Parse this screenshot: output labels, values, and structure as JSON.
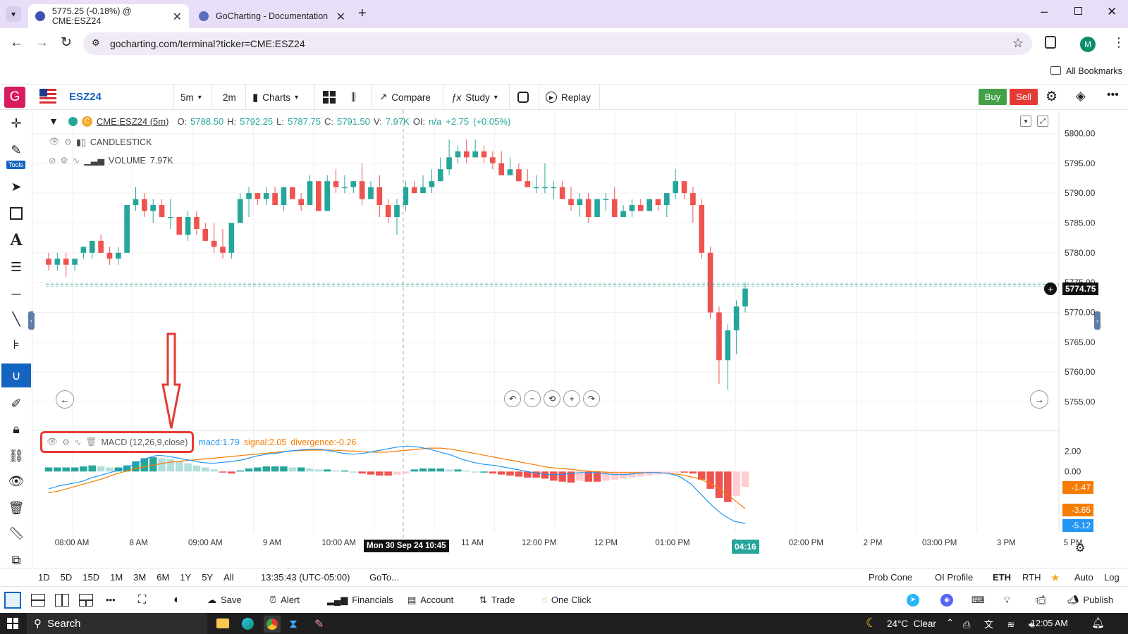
{
  "browser": {
    "tabs": [
      {
        "title": "5775.25 (-0.18%) @ CME:ESZ24",
        "active": true
      },
      {
        "title": "GoCharting - Documentation",
        "active": false
      }
    ],
    "url": "gocharting.com/terminal?ticker=CME:ESZ24",
    "profile_initial": "M",
    "bookmarks_label": "All Bookmarks"
  },
  "app": {
    "logo": "G",
    "symbol": "ESZ24",
    "interval_selected": "5m",
    "interval_alt": "2m",
    "charts_label": "Charts",
    "compare_label": "Compare",
    "study_label": "Study",
    "replay_label": "Replay",
    "buy_label": "Buy",
    "sell_label": "Sell",
    "tools_badge": "Tools"
  },
  "legend": {
    "ticker": "CME:ESZ24 (5m)",
    "ohlc": [
      {
        "k": "O:",
        "v": "5788.50"
      },
      {
        "k": "H:",
        "v": "5792.25"
      },
      {
        "k": "L:",
        "v": "5787.75"
      },
      {
        "k": "C:",
        "v": "5791.50"
      },
      {
        "k": "V:",
        "v": "7.97K"
      },
      {
        "k": "OI:",
        "v": "n/a"
      }
    ],
    "change": "+2.75",
    "change_pct": "(+0.05%)",
    "candlestick_label": "CANDLESTICK",
    "volume_label": "VOLUME",
    "volume_value": "7.97K"
  },
  "macd_legend": {
    "label": "MACD (12,26,9,close)",
    "macd": "macd:1.79",
    "signal": "signal:2.05",
    "divergence": "divergence:-0.26"
  },
  "price_axis": [
    "5800.00",
    "5795.00",
    "5790.00",
    "5785.00",
    "5780.00",
    "5775.00",
    "5770.00",
    "5765.00",
    "5760.00",
    "5755.00"
  ],
  "current_price": "5774.75",
  "macd_axis": [
    "2.00",
    "0.00"
  ],
  "macd_tags": [
    {
      "v": "-1.47",
      "color": "#f57c00"
    },
    {
      "v": "-3.65",
      "color": "#f57c00"
    },
    {
      "v": "-5.12",
      "color": "#2196f3"
    }
  ],
  "time_axis": [
    "08:00 AM",
    "8 AM",
    "09:00 AM",
    "9 AM",
    "10:00 AM",
    "10:45",
    "11 AM",
    "12:00 PM",
    "12 PM",
    "01:00 PM",
    "Sep",
    "02:00 PM",
    "2 PM",
    "03:00 PM",
    "3 PM",
    "5 PM"
  ],
  "crosshair_label": "Mon 30 Sep 24 10:45",
  "current_time_label": "04:16",
  "range_buttons": [
    "1D",
    "5D",
    "15D",
    "1M",
    "3M",
    "6M",
    "1Y",
    "5Y",
    "All"
  ],
  "clock": "13:35:43 (UTC-05:00)",
  "goto_label": "GoTo...",
  "right_options": [
    "Prob Cone",
    "OI Profile",
    "ETH",
    "RTH",
    "Auto",
    "Log"
  ],
  "bottom_toolbar": {
    "save": "Save",
    "alert": "Alert",
    "financials": "Financials",
    "account": "Account",
    "trade": "Trade",
    "one_click": "One Click",
    "publish": "Publish"
  },
  "taskbar": {
    "search": "Search",
    "weather": "24°C  Clear",
    "time": "12:05 AM"
  },
  "chart_data": {
    "type": "candlestick",
    "ylim": [
      5752,
      5803
    ],
    "candles": [
      [
        5779,
        5780,
        5777,
        5778
      ],
      [
        5778,
        5780,
        5777,
        5779
      ],
      [
        5779,
        5780,
        5776,
        5778
      ],
      [
        5778,
        5779,
        5777,
        5779
      ],
      [
        5780,
        5781,
        5779,
        5781
      ],
      [
        5780,
        5782,
        5779,
        5782
      ],
      [
        5782,
        5783,
        5780,
        5780
      ],
      [
        5780,
        5781,
        5778,
        5779
      ],
      [
        5779,
        5781,
        5778,
        5780
      ],
      [
        5780,
        5788,
        5780,
        5788
      ],
      [
        5788,
        5791,
        5787,
        5789
      ],
      [
        5789,
        5790,
        5786,
        5787
      ],
      [
        5787,
        5789,
        5785,
        5788
      ],
      [
        5788,
        5789,
        5786,
        5786
      ],
      [
        5786,
        5789,
        5784,
        5786
      ],
      [
        5786,
        5786,
        5783,
        5783
      ],
      [
        5783,
        5787,
        5782,
        5786
      ],
      [
        5786,
        5787,
        5783,
        5784
      ],
      [
        5784,
        5785,
        5782,
        5782
      ],
      [
        5782,
        5785,
        5780,
        5781
      ],
      [
        5781,
        5784,
        5779,
        5780
      ],
      [
        5780,
        5785,
        5779,
        5785
      ],
      [
        5785,
        5790,
        5785,
        5789
      ],
      [
        5789,
        5791,
        5786,
        5790
      ],
      [
        5790,
        5790,
        5788,
        5789
      ],
      [
        5789,
        5791,
        5788,
        5790
      ],
      [
        5790,
        5791,
        5788,
        5788
      ],
      [
        5788,
        5791,
        5787,
        5791
      ],
      [
        5791,
        5791,
        5789,
        5789
      ],
      [
        5789,
        5790,
        5787,
        5788
      ],
      [
        5788,
        5793,
        5788,
        5792
      ],
      [
        5792,
        5792,
        5787,
        5787
      ],
      [
        5787,
        5793,
        5787,
        5792
      ],
      [
        5792,
        5794,
        5790,
        5791
      ],
      [
        5791,
        5793,
        5790,
        5791
      ],
      [
        5791,
        5792,
        5790,
        5792
      ],
      [
        5792,
        5795,
        5788,
        5789
      ],
      [
        5789,
        5792,
        5789,
        5791
      ],
      [
        5791,
        5793,
        5786,
        5788
      ],
      [
        5788,
        5789,
        5785,
        5786
      ],
      [
        5786,
        5789,
        5783,
        5788
      ],
      [
        5788,
        5792,
        5787,
        5791
      ],
      [
        5791,
        5792,
        5790,
        5790
      ],
      [
        5790,
        5793,
        5790,
        5791
      ],
      [
        5791,
        5794,
        5790,
        5792
      ],
      [
        5792,
        5796,
        5792,
        5794
      ],
      [
        5794,
        5799,
        5793,
        5796
      ],
      [
        5796,
        5798,
        5795,
        5797
      ],
      [
        5797,
        5799,
        5795,
        5796
      ],
      [
        5796,
        5799,
        5796,
        5797
      ],
      [
        5797,
        5798,
        5795,
        5796
      ],
      [
        5796,
        5797,
        5794,
        5795
      ],
      [
        5795,
        5797,
        5793,
        5793
      ],
      [
        5793,
        5796,
        5793,
        5794
      ],
      [
        5794,
        5795,
        5792,
        5792
      ],
      [
        5792,
        5794,
        5791,
        5791
      ],
      [
        5791,
        5793,
        5790,
        5791
      ],
      [
        5791,
        5795,
        5790,
        5791
      ],
      [
        5791,
        5792,
        5789,
        5791
      ],
      [
        5791,
        5792,
        5789,
        5789
      ],
      [
        5789,
        5791,
        5787,
        5788
      ],
      [
        5788,
        5790,
        5786,
        5789
      ],
      [
        5789,
        5790,
        5785,
        5786
      ],
      [
        5786,
        5789,
        5786,
        5789
      ],
      [
        5789,
        5790,
        5787,
        5789
      ],
      [
        5789,
        5791,
        5786,
        5786
      ],
      [
        5786,
        5788,
        5786,
        5787
      ],
      [
        5787,
        5789,
        5786,
        5788
      ],
      [
        5788,
        5789,
        5787,
        5787
      ],
      [
        5787,
        5789,
        5787,
        5789
      ],
      [
        5789,
        5789,
        5787,
        5788
      ],
      [
        5788,
        5790,
        5786,
        5790
      ],
      [
        5790,
        5794,
        5789,
        5792
      ],
      [
        5792,
        5792,
        5789,
        5790
      ],
      [
        5790,
        5791,
        5785,
        5788
      ],
      [
        5788,
        5789,
        5779,
        5780
      ],
      [
        5780,
        5781,
        5769,
        5770
      ],
      [
        5770,
        5771,
        5758,
        5762
      ],
      [
        5762,
        5768,
        5757,
        5767
      ],
      [
        5767,
        5772,
        5763,
        5771
      ],
      [
        5771,
        5775,
        5770,
        5774
      ]
    ],
    "macd_hist": [
      0.4,
      0.4,
      0.4,
      0.4,
      0.5,
      0.6,
      0.5,
      0.4,
      0.4,
      0.6,
      1.0,
      1.3,
      1.4,
      1.3,
      1.2,
      1.0,
      0.8,
      0.6,
      0.4,
      0.2,
      -0.1,
      -0.2,
      0.1,
      0.3,
      0.4,
      0.5,
      0.5,
      0.5,
      0.4,
      0.4,
      0.3,
      0.2,
      0.2,
      0.1,
      0.1,
      0.0,
      -0.2,
      -0.3,
      -0.4,
      -0.4,
      -0.3,
      -0.2,
      0.2,
      0.3,
      0.3,
      0.3,
      0.2,
      0.2,
      0.1,
      0.0,
      0.0,
      -0.2,
      -0.3,
      -0.4,
      -0.5,
      -0.6,
      -0.6,
      -0.7,
      -0.9,
      -1.0,
      -1.1,
      -0.9,
      -1.0,
      -1.0,
      -0.9,
      -0.8,
      -0.7,
      -0.6,
      -0.5,
      -0.4,
      -0.3,
      -0.2,
      -0.1,
      -0.1,
      -0.2,
      -0.8,
      -1.7,
      -2.6,
      -3.0,
      -2.4,
      -1.5
    ],
    "macd_line": [
      -1.7,
      -1.4,
      -1.2,
      -1.0,
      -0.6,
      -0.3,
      0.0,
      0.3,
      0.8,
      1.3,
      1.6,
      1.5,
      1.3,
      1.1,
      0.9,
      0.8,
      0.9,
      1.0,
      1.2,
      1.5,
      1.7,
      1.8,
      2.0,
      2.1,
      2.2,
      2.2,
      2.0,
      1.8,
      1.7,
      1.8,
      2.0,
      2.2,
      2.4,
      2.5,
      2.4,
      2.2,
      1.9,
      1.6,
      1.2,
      0.9,
      0.7,
      0.6,
      0.4,
      0.2,
      0.0,
      -0.2,
      -0.3,
      -0.3,
      -0.2,
      -0.1,
      -0.1,
      -0.2,
      -0.3,
      -0.3,
      -0.2,
      -0.1,
      -0.1,
      -0.2,
      -0.5,
      -1.2,
      -2.3,
      -3.4,
      -4.3,
      -4.9,
      -5.1
    ],
    "signal_line": [
      -2.1,
      -1.9,
      -1.6,
      -1.3,
      -1.0,
      -0.7,
      -0.3,
      0.0,
      0.3,
      0.5,
      0.7,
      0.9,
      1.0,
      1.1,
      1.2,
      1.3,
      1.4,
      1.5,
      1.6,
      1.7,
      1.8,
      1.9,
      2.0,
      2.05,
      2.1,
      2.1,
      2.1,
      2.05,
      2.0,
      1.95,
      1.9,
      1.9,
      2.0,
      2.1,
      2.2,
      2.3,
      2.3,
      2.2,
      2.0,
      1.8,
      1.6,
      1.4,
      1.2,
      1.0,
      0.8,
      0.6,
      0.4,
      0.3,
      0.2,
      0.1,
      0.0,
      -0.05,
      -0.1,
      -0.1,
      -0.1,
      -0.1,
      -0.1,
      -0.2,
      -0.3,
      -0.5,
      -0.8,
      -1.3,
      -2.0,
      -2.8,
      -3.65
    ]
  }
}
